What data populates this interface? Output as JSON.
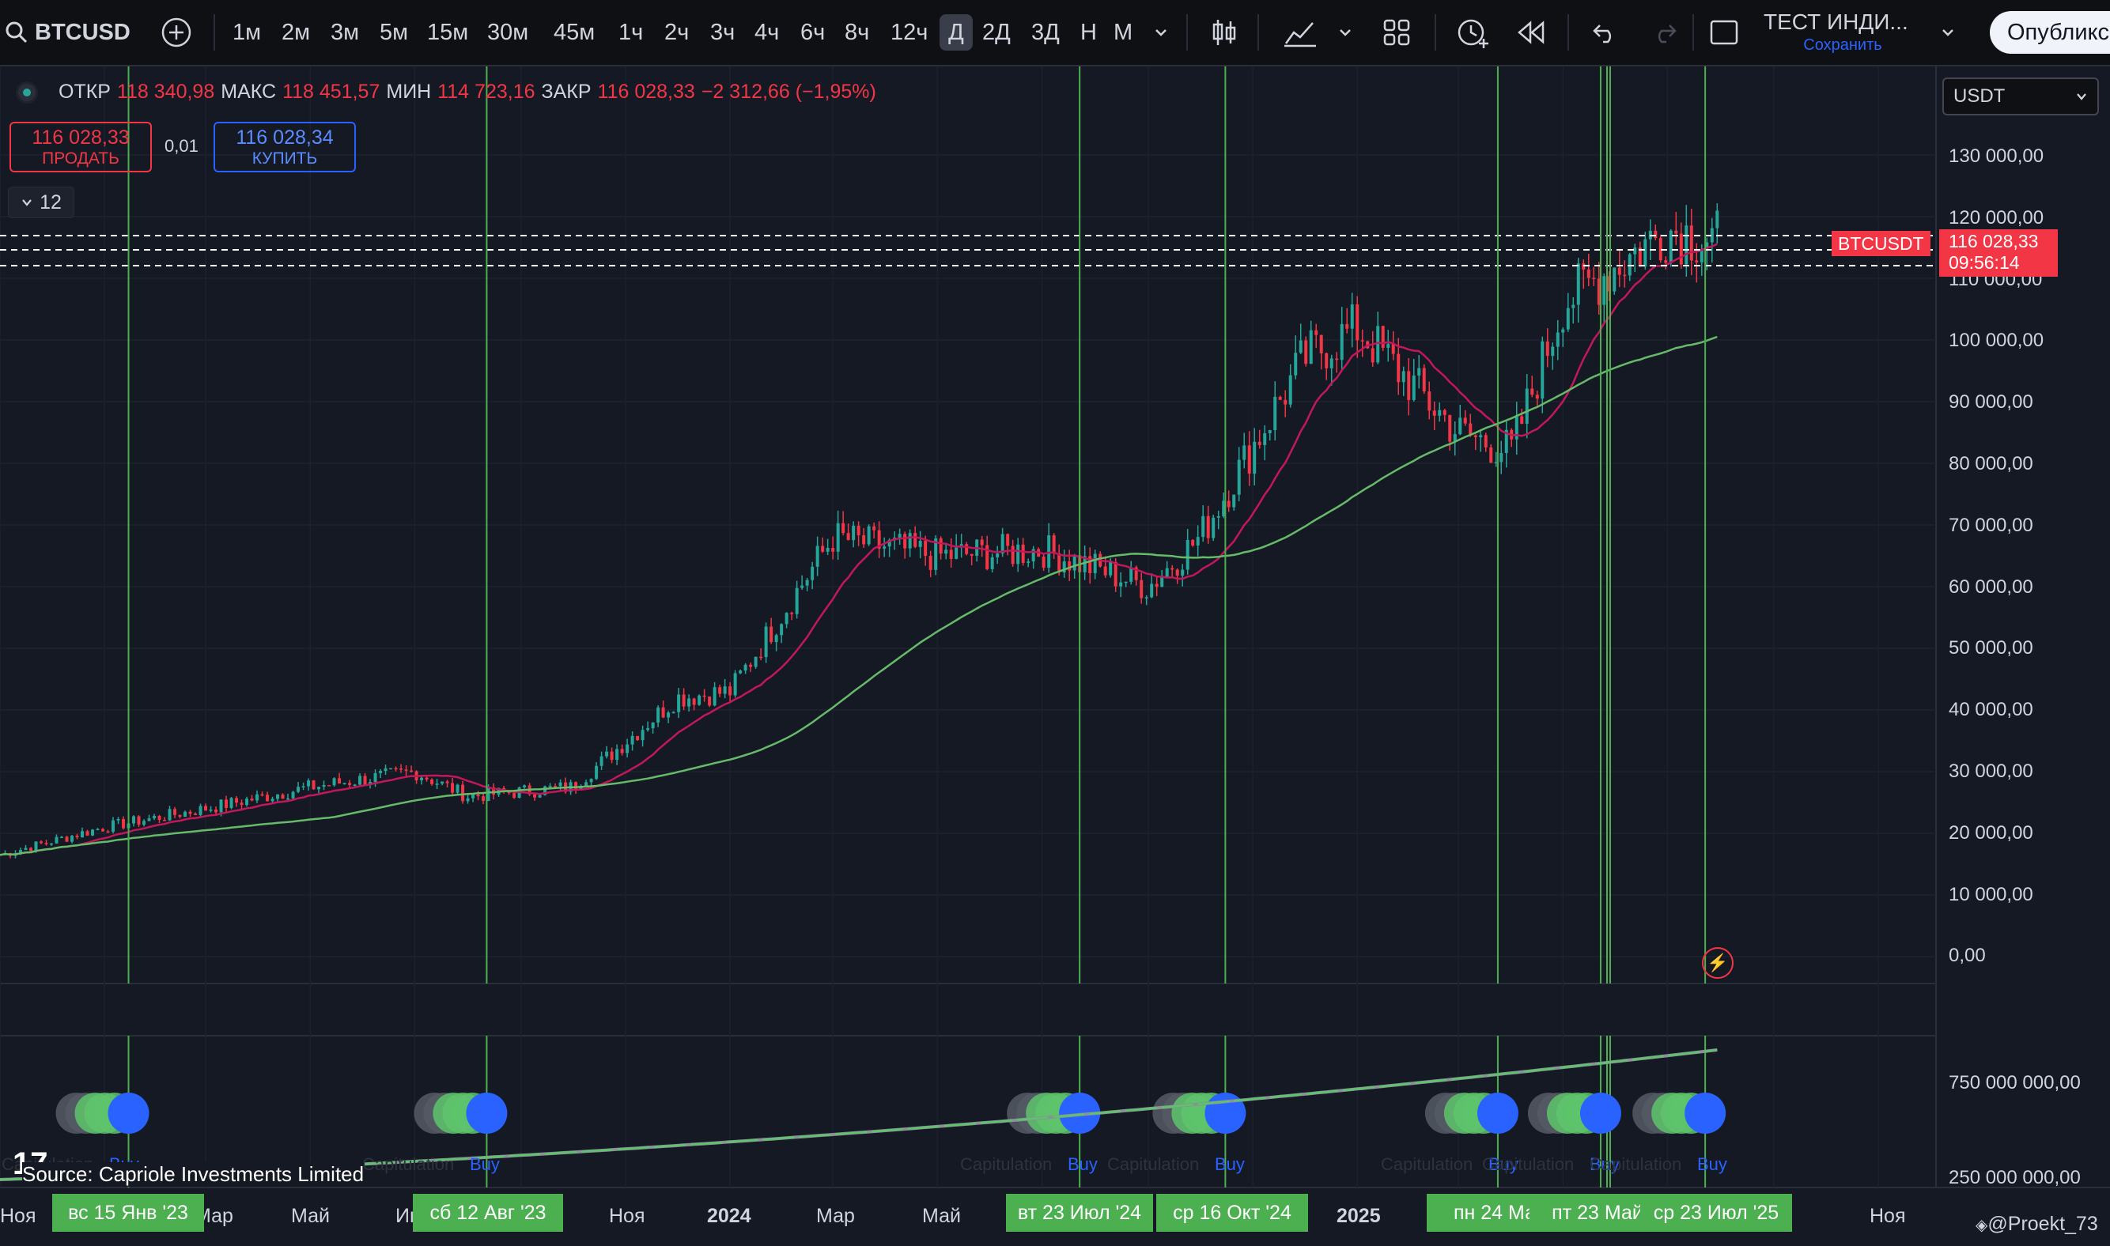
{
  "toolbar": {
    "symbol": "BTCUSD",
    "intervals": [
      "1м",
      "2м",
      "3м",
      "5м",
      "15м",
      "30м",
      "45м",
      "1ч",
      "2ч",
      "3ч",
      "4ч",
      "6ч",
      "8ч",
      "12ч",
      "Д",
      "2Д",
      "3Д",
      "Н",
      "М"
    ],
    "active_interval": "Д",
    "indicator_title": "ТЕСТ ИНДИ...",
    "save_label": "Сохранить",
    "publish_label": "Опубликс"
  },
  "legend": {
    "open_label": "ОТКР",
    "open": "118 340,98",
    "high_label": "МАКС",
    "high": "118 451,57",
    "low_label": "МИН",
    "low": "114 723,16",
    "close_label": "ЗАКР",
    "close": "116 028,33",
    "change": "−2 312,66 (−1,95%)"
  },
  "trade": {
    "sell_price": "116 028,33",
    "sell_label": "ПРОДАТЬ",
    "spread": "0,01",
    "buy_price": "116 028,34",
    "buy_label": "КУПИТЬ",
    "collapse_count": "12"
  },
  "currency": "USDT",
  "price_axis": [
    "130 000,00",
    "120 000,00",
    "110 000,00",
    "100 000,00",
    "90 000,00",
    "80 000,00",
    "70 000,00",
    "60 000,00",
    "50 000,00",
    "40 000,00",
    "30 000,00",
    "20 000,00",
    "10 000,00",
    "0,00"
  ],
  "price_tag": {
    "symbol": "BTCUSDT",
    "price": "116 028,33",
    "countdown": "09:56:14"
  },
  "volume_axis": [
    "750 000 000,00",
    "250 000 000,00"
  ],
  "time_axis": [
    "Ноя",
    "Мар",
    "Май",
    "Ию",
    "Ноя",
    "2024",
    "Мар",
    "Май",
    "2025",
    "Ноя"
  ],
  "highlighted_dates": [
    "вс 15 Янв '23",
    "сб 12 Авг '23",
    "вт 23 Июл '24",
    "ср 16 Окт '24",
    "пн 24 Ма",
    "пт 23 Май",
    "ср 23 Июл '25"
  ],
  "signal_label": "Buy",
  "capitulation_label": "Capitulation",
  "source_text": "Source: Capriole Investments Limited",
  "logo_text": "TV",
  "author": "@Proekt_73",
  "colors": {
    "background": "#151924",
    "up": "#26a69a",
    "down": "#f23645",
    "ma_short": "#c2185b",
    "ma_long": "#66bb6a",
    "signal_line": "#4caf50",
    "buy": "#2962ff"
  },
  "chart_data": {
    "type": "line",
    "x": [
      "2022-11",
      "2023-01",
      "2023-03",
      "2023-05",
      "2023-07",
      "2023-08",
      "2023-10",
      "2023-12",
      "2024-01",
      "2024-03",
      "2024-05",
      "2024-07",
      "2024-09",
      "2024-10",
      "2024-12",
      "2025-01",
      "2025-03",
      "2025-04",
      "2025-05",
      "2025-07",
      "2025-08"
    ],
    "series": [
      {
        "name": "BTCUSD",
        "values": [
          16500,
          21000,
          24000,
          27500,
          30000,
          26000,
          27500,
          42000,
          43000,
          68000,
          65000,
          66000,
          60000,
          68000,
          97000,
          102000,
          85000,
          82000,
          106000,
          118000,
          116028
        ]
      }
    ],
    "ylim": [
      0,
      130000
    ],
    "signals": [
      "2023-01-15",
      "2023-08-12",
      "2024-07-23",
      "2024-10-16",
      "2025-03-24",
      "2025-05-23",
      "2025-07-23"
    ],
    "volume_ylim": [
      250000000,
      750000000
    ]
  }
}
